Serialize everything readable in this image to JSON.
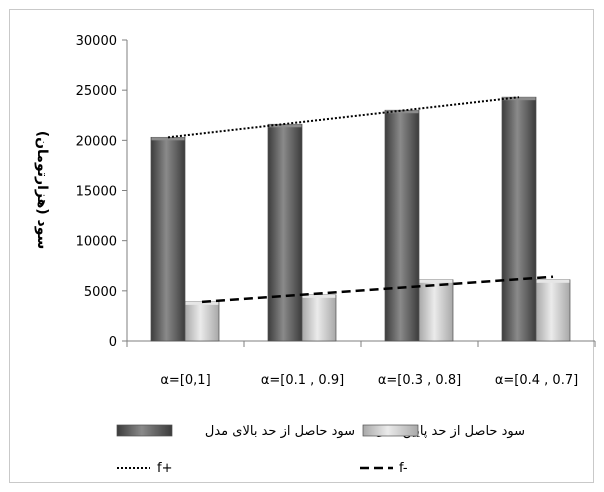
{
  "chart_data": {
    "type": "bar",
    "ylabel": "سود (هزارتومان)",
    "ylim": [
      0,
      30000
    ],
    "ytick_step": 5000,
    "categories": [
      "α=[0,1]",
      "α=[0.1 , 0.9]",
      "α=[0.3 , 0.8]",
      "α=[0.4 , 0.7]"
    ],
    "series": [
      {
        "name": "سود حاصل از حد بالای مدل",
        "values": [
          20300,
          21600,
          23000,
          24300
        ],
        "color": "#5f5f5f"
      },
      {
        "name": "سود حاصل از حد پایین مدل",
        "values": [
          3900,
          4600,
          6100,
          6100
        ],
        "color": "#cfcfcf"
      }
    ],
    "trendlines": [
      {
        "name": "f+",
        "style": "dotted",
        "from": 20300,
        "to": 24300
      },
      {
        "name": "f-",
        "style": "dashed",
        "from": 3900,
        "to": 6400
      }
    ],
    "grid": false,
    "legend_position": "bottom"
  }
}
